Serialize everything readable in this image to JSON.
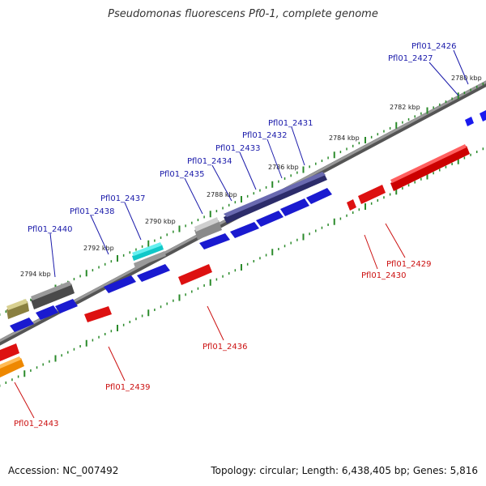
{
  "title": "Pseudomonas fluorescens Pf0-1, complete genome",
  "footer": {
    "accession": "Accession: NC_007492",
    "summary": "Topology: circular; Length: 6,438,405 bp; Genes: 5,816"
  },
  "colors": {
    "backbone": "#777777",
    "tick": "#2a8a2a",
    "label_forward": "#1a1aaa",
    "label_reverse": "#cc1111",
    "gene_blue": "#1a1aee",
    "gene_red": "#ee1111",
    "gene_navy": "#3a3a80",
    "gene_gray": "#888888",
    "gene_dark": "#555555",
    "gene_olive": "#a8a050",
    "gene_cyan": "#11dddd",
    "gene_orange": "#ee8800"
  },
  "kbp_labels": [
    "2780 kbp",
    "2782 kbp",
    "2784 kbp",
    "2786 kbp",
    "2788 kbp",
    "2790 kbp",
    "2792 kbp",
    "2794 kbp"
  ],
  "forward_labels": [
    "Pfl01_2426",
    "Pfl01_2427",
    "Pfl01_2431",
    "Pfl01_2432",
    "Pfl01_2433",
    "Pfl01_2434",
    "Pfl01_2435",
    "Pfl01_2437",
    "Pfl01_2438",
    "Pfl01_2440"
  ],
  "reverse_labels": [
    "Pfl01_2429",
    "Pfl01_2430",
    "Pfl01_2436",
    "Pfl01_2439",
    "Pfl01_2443"
  ]
}
